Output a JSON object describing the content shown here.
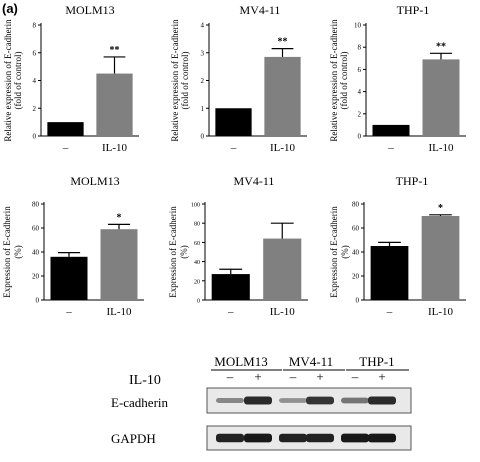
{
  "figure": {
    "panel_label": "(a)"
  },
  "chart_data": [
    {
      "type": "bar",
      "title": "MOLM13",
      "ylabel_lines": [
        "Relative expression of E-cadherin",
        "(fold of control)"
      ],
      "categories": [
        "–",
        "IL-10"
      ],
      "values": [
        1.0,
        4.5
      ],
      "errors": [
        0,
        1.2
      ],
      "bar_colors": [
        "#000000",
        "#808080"
      ],
      "significance": [
        "",
        "**"
      ],
      "ylim": [
        0,
        8
      ],
      "yticks": [
        0,
        2,
        4,
        6,
        8
      ]
    },
    {
      "type": "bar",
      "title": "MV4-11",
      "ylabel_lines": [
        "Relative expression of E-cadherin",
        "(fold of control)"
      ],
      "categories": [
        "–",
        "IL-10"
      ],
      "values": [
        1.0,
        2.85
      ],
      "errors": [
        0,
        0.3
      ],
      "bar_colors": [
        "#000000",
        "#808080"
      ],
      "significance": [
        "",
        "**"
      ],
      "ylim": [
        0,
        4
      ],
      "yticks": [
        0,
        1,
        2,
        3,
        4
      ]
    },
    {
      "type": "bar",
      "title": "THP-1",
      "ylabel_lines": [
        "Relative expression of E-cadherin",
        "(fold of control)"
      ],
      "categories": [
        "–",
        "IL-10"
      ],
      "values": [
        1.0,
        6.9
      ],
      "errors": [
        0,
        0.55
      ],
      "bar_colors": [
        "#000000",
        "#808080"
      ],
      "significance": [
        "",
        "**"
      ],
      "ylim": [
        0,
        10
      ],
      "yticks": [
        0,
        2,
        4,
        6,
        8,
        10
      ]
    },
    {
      "type": "bar",
      "title": "MOLM13",
      "ylabel_lines": [
        "Expression of E-cadherin",
        "(%)"
      ],
      "categories": [
        "–",
        "IL-10"
      ],
      "values": [
        36,
        59
      ],
      "errors": [
        3.5,
        4
      ],
      "bar_colors": [
        "#000000",
        "#808080"
      ],
      "significance": [
        "",
        "*"
      ],
      "ylim": [
        0,
        80
      ],
      "yticks": [
        0,
        20,
        40,
        60,
        80
      ]
    },
    {
      "type": "bar",
      "title": "MV4-11",
      "ylabel_lines": [
        "Expression of E-cadherin",
        "(%)"
      ],
      "categories": [
        "–",
        "IL-10"
      ],
      "values": [
        27,
        64
      ],
      "errors": [
        5,
        16
      ],
      "bar_colors": [
        "#000000",
        "#808080"
      ],
      "significance": [
        "",
        ""
      ],
      "ylim": [
        0,
        100
      ],
      "yticks": [
        0,
        20,
        40,
        60,
        80,
        100
      ]
    },
    {
      "type": "bar",
      "title": "THP-1",
      "ylabel_lines": [
        "Expression of E-cadherin",
        "(%)"
      ],
      "categories": [
        "–",
        "IL-10"
      ],
      "values": [
        45,
        70
      ],
      "errors": [
        3,
        1
      ],
      "bar_colors": [
        "#000000",
        "#808080"
      ],
      "significance": [
        "",
        "*"
      ],
      "ylim": [
        0,
        80
      ],
      "yticks": [
        0,
        20,
        40,
        60,
        80
      ]
    }
  ],
  "blot": {
    "cell_lines": [
      "MOLM13",
      "MV4-11",
      "THP-1"
    ],
    "treatment_label": "IL-10",
    "lane_signs": [
      "–",
      "+",
      "–",
      "+",
      "–",
      "+"
    ],
    "rows": [
      {
        "label": "E-cadherin",
        "intensities": [
          0.35,
          0.85,
          0.3,
          0.8,
          0.45,
          0.85
        ]
      },
      {
        "label": "GAPDH",
        "intensities": [
          0.9,
          0.95,
          0.9,
          0.9,
          0.95,
          0.95
        ]
      }
    ]
  }
}
